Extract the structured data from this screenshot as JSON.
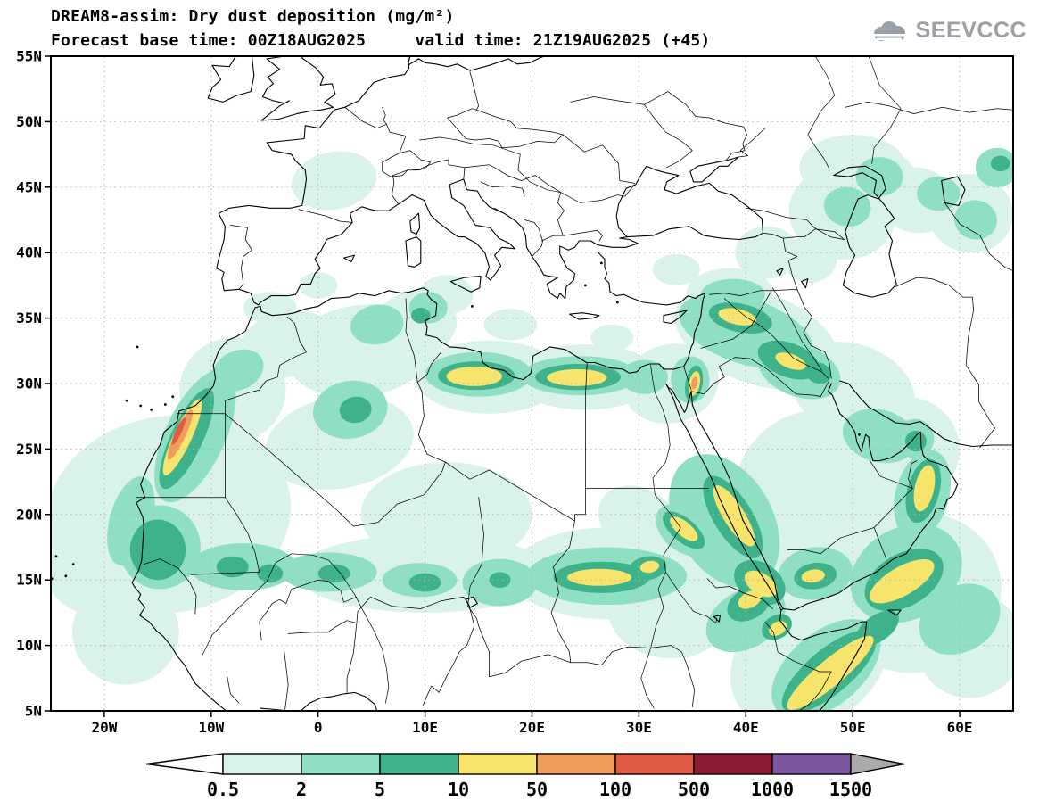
{
  "header": {
    "title_line1": "DREAM8-assim: Dry dust deposition (mg/m²)",
    "title_line2": "Forecast base time: 00Z18AUG2025     valid time: 21Z19AUG2025 (+45)",
    "logo_text": "SEEVCCC"
  },
  "map": {
    "extent": {
      "lon_min": -25,
      "lon_max": 65,
      "lat_min": 5,
      "lat_max": 55
    },
    "lat_ticks": [
      {
        "label": "55N",
        "value": 55
      },
      {
        "label": "50N",
        "value": 50
      },
      {
        "label": "45N",
        "value": 45
      },
      {
        "label": "40N",
        "value": 40
      },
      {
        "label": "35N",
        "value": 35
      },
      {
        "label": "30N",
        "value": 30
      },
      {
        "label": "25N",
        "value": 25
      },
      {
        "label": "20N",
        "value": 20
      },
      {
        "label": "15N",
        "value": 15
      },
      {
        "label": "10N",
        "value": 10
      },
      {
        "label": "5N",
        "value": 5
      }
    ],
    "lon_ticks": [
      {
        "label": "20W",
        "value": -20
      },
      {
        "label": "10W",
        "value": -10
      },
      {
        "label": "0",
        "value": 0
      },
      {
        "label": "10E",
        "value": 10
      },
      {
        "label": "20E",
        "value": 20
      },
      {
        "label": "30E",
        "value": 30
      },
      {
        "label": "40E",
        "value": 40
      },
      {
        "label": "50E",
        "value": 50
      },
      {
        "label": "60E",
        "value": 60
      }
    ]
  },
  "legend": {
    "boundary_labels": [
      "0.5",
      "2",
      "5",
      "10",
      "50",
      "100",
      "500",
      "1000",
      "1500"
    ],
    "colors": [
      "#ffffff",
      "#d9f2ec",
      "#8fe0c2",
      "#3eb28a",
      "#f6e46d",
      "#f09c5d",
      "#e05a44",
      "#8e1c34",
      "#7c58a1",
      "#aaaaaa"
    ]
  },
  "chart_data": {
    "type": "filled_contour_map",
    "title": "DREAM8-assim: Dry dust deposition (mg/m²)",
    "units": "mg/m²",
    "forecast_base_time": "00Z18AUG2025",
    "valid_time": "21Z19AUG2025 (+45)",
    "lead_hours": 45,
    "levels_mg_m2": [
      0.5,
      2,
      5,
      10,
      50,
      100,
      500,
      1000,
      1500
    ],
    "palette": [
      "#ffffff",
      "#d9f2ec",
      "#8fe0c2",
      "#3eb28a",
      "#f6e46d",
      "#f09c5d",
      "#e05a44",
      "#8e1c34",
      "#7c58a1",
      "#aaaaaa"
    ],
    "extent": {
      "lon_min": -25,
      "lon_max": 65,
      "lat_min": 5,
      "lat_max": 55
    },
    "regions_format": "[band_index, lon, lat, rx_deg, ry_deg, rotation_deg_screen_cw]; band i spans levels_mg_m2[i-1]..levels_mg_m2[i] (band 1 = 0.5-2 mg/m2)",
    "regions": [
      [
        1,
        -14,
        20,
        11.5,
        7.5,
        -10
      ],
      [
        1,
        -19,
        15.5,
        6.5,
        3.5,
        0
      ],
      [
        1,
        -18,
        11,
        5,
        4,
        0
      ],
      [
        1,
        -8,
        29.5,
        5,
        4,
        -25
      ],
      [
        1,
        -3,
        33,
        4.5,
        2.5,
        -15
      ],
      [
        1,
        -4.5,
        35.8,
        2.5,
        1.2,
        0
      ],
      [
        1,
        1.5,
        45.5,
        4,
        2.2,
        -10
      ],
      [
        1,
        4,
        32.5,
        7,
        3.5,
        -8
      ],
      [
        1,
        9,
        34.5,
        4,
        2.5,
        -10
      ],
      [
        1,
        12,
        36.8,
        2.5,
        1.5,
        0
      ],
      [
        1,
        0,
        37.5,
        1.8,
        1,
        0
      ],
      [
        1,
        2,
        25.5,
        7,
        3.5,
        -10
      ],
      [
        1,
        12,
        20,
        8,
        4,
        0
      ],
      [
        1,
        10,
        15.5,
        12,
        3,
        0
      ],
      [
        1,
        27,
        15.5,
        9,
        3.5,
        0
      ],
      [
        1,
        16,
        30.5,
        7,
        2.8,
        0
      ],
      [
        1,
        25,
        30.5,
        7,
        2.5,
        0
      ],
      [
        1,
        33,
        30,
        4.5,
        3,
        -15
      ],
      [
        1,
        18,
        34.5,
        2.5,
        1.2,
        0
      ],
      [
        1,
        27.5,
        33.5,
        2,
        1,
        0
      ],
      [
        1,
        38.5,
        18,
        5,
        6.5,
        -30
      ],
      [
        1,
        33,
        13,
        6,
        4,
        0
      ],
      [
        1,
        30,
        19.5,
        4,
        2.5,
        30
      ],
      [
        1,
        46,
        9,
        8,
        5,
        -35
      ],
      [
        1,
        56,
        14,
        8,
        6,
        -25
      ],
      [
        1,
        61,
        10,
        5,
        4,
        -25
      ],
      [
        1,
        47,
        22,
        8,
        6,
        -10
      ],
      [
        1,
        52.5,
        18.5,
        4,
        3,
        -25
      ],
      [
        1,
        41,
        33.5,
        8,
        3.5,
        20
      ],
      [
        1,
        38.5,
        37,
        4,
        1.8,
        0
      ],
      [
        1,
        33.5,
        38.7,
        2.2,
        1.2,
        0
      ],
      [
        1,
        42,
        40,
        3,
        2,
        0
      ],
      [
        1,
        46,
        39.5,
        2.5,
        1.8,
        0
      ],
      [
        1,
        50,
        29.5,
        6,
        3.5,
        20
      ],
      [
        1,
        55,
        25,
        5,
        4,
        15
      ],
      [
        1,
        49,
        43,
        5,
        3.5,
        10
      ],
      [
        1,
        52,
        45.5,
        4,
        2.5,
        0
      ],
      [
        1,
        50,
        46.5,
        5,
        2.5,
        0
      ],
      [
        1,
        56,
        44,
        3.5,
        2.5,
        10
      ],
      [
        1,
        61,
        43,
        4,
        3,
        10
      ],
      [
        2,
        -11.5,
        26,
        2.8,
        5.5,
        25
      ],
      [
        2,
        -14.8,
        17.5,
        3.8,
        3.2,
        0
      ],
      [
        2,
        -17.5,
        19.5,
        2,
        3.5,
        15
      ],
      [
        2,
        -7,
        16,
        5,
        1.8,
        0
      ],
      [
        2,
        1,
        15.6,
        4.5,
        1.5,
        0
      ],
      [
        2,
        9.5,
        15,
        3.5,
        1.3,
        0
      ],
      [
        2,
        17,
        14.8,
        3.5,
        1.8,
        0
      ],
      [
        2,
        -7.5,
        31,
        2.5,
        1.5,
        -25
      ],
      [
        2,
        3,
        28,
        3.5,
        2.2,
        -10
      ],
      [
        2,
        5.5,
        34.5,
        2.5,
        1.5,
        -10
      ],
      [
        2,
        10.3,
        35.8,
        1.8,
        1.2,
        0
      ],
      [
        2,
        15,
        30.7,
        5,
        1.7,
        0
      ],
      [
        2,
        24.5,
        30.6,
        5.5,
        1.5,
        0
      ],
      [
        2,
        30.5,
        30.5,
        2.2,
        1.3,
        0
      ],
      [
        2,
        34.8,
        30.3,
        1.8,
        1.8,
        0
      ],
      [
        2,
        40,
        34,
        6.5,
        2.5,
        18
      ],
      [
        2,
        45,
        31,
        4,
        2,
        20
      ],
      [
        2,
        38.8,
        36.8,
        3,
        1.2,
        0
      ],
      [
        2,
        38,
        19.5,
        4.5,
        5.5,
        -30
      ],
      [
        2,
        27,
        15.3,
        7.5,
        2.2,
        0
      ],
      [
        2,
        34.2,
        18.8,
        3,
        1.6,
        40
      ],
      [
        2,
        40,
        12,
        4,
        2.2,
        -30
      ],
      [
        2,
        47.5,
        8.2,
        6,
        2.8,
        -40
      ],
      [
        2,
        55,
        15.5,
        5.5,
        3.5,
        -30
      ],
      [
        2,
        60,
        12,
        4,
        2.5,
        -30
      ],
      [
        2,
        46.5,
        15.5,
        3.5,
        2,
        -8
      ],
      [
        2,
        56.5,
        21.5,
        2.5,
        3.5,
        15
      ],
      [
        2,
        52.5,
        26,
        3.5,
        2,
        15
      ],
      [
        2,
        55.8,
        25.8,
        1.8,
        1.5,
        0
      ],
      [
        2,
        49.5,
        43.5,
        2.2,
        1.5,
        10
      ],
      [
        2,
        52.5,
        45.8,
        2.2,
        1.5,
        0
      ],
      [
        2,
        58,
        44.5,
        2,
        1.3,
        0
      ],
      [
        2,
        61.5,
        42.5,
        2,
        1.5,
        10
      ],
      [
        2,
        63.5,
        46.5,
        2,
        1.5,
        0
      ],
      [
        3,
        -12.3,
        25.8,
        1.5,
        4.2,
        25
      ],
      [
        3,
        -15,
        17.3,
        2.6,
        2.3,
        0
      ],
      [
        3,
        -8,
        16,
        1.5,
        0.8,
        0
      ],
      [
        3,
        -4.5,
        15.5,
        1.2,
        0.7,
        0
      ],
      [
        3,
        1.5,
        15.5,
        1.5,
        0.7,
        0
      ],
      [
        3,
        10,
        14.8,
        1.5,
        0.7,
        0
      ],
      [
        3,
        17,
        15,
        1,
        0.6,
        0
      ],
      [
        3,
        14.8,
        30.6,
        3.6,
        1.1,
        0
      ],
      [
        3,
        24.3,
        30.5,
        4,
        1,
        0
      ],
      [
        3,
        9.6,
        35.2,
        0.9,
        0.6,
        0
      ],
      [
        3,
        3.5,
        28,
        1.5,
        1,
        -10
      ],
      [
        3,
        39.5,
        35,
        3,
        1.1,
        12
      ],
      [
        3,
        44,
        31.8,
        3,
        1.3,
        20
      ],
      [
        3,
        46.8,
        30.8,
        1.2,
        0.8,
        20
      ],
      [
        3,
        38.8,
        19.8,
        1.8,
        3.6,
        -32
      ],
      [
        3,
        41.3,
        14.8,
        2.6,
        1.5,
        33
      ],
      [
        3,
        26.5,
        15.2,
        4.5,
        1.2,
        0
      ],
      [
        3,
        30.8,
        15.9,
        1.8,
        0.9,
        -10
      ],
      [
        3,
        34.2,
        18.8,
        2.4,
        0.9,
        40
      ],
      [
        3,
        40.3,
        13.2,
        2.2,
        1.2,
        -30
      ],
      [
        3,
        42.9,
        11.4,
        1.5,
        0.9,
        -30
      ],
      [
        3,
        47.8,
        8,
        5.5,
        1.7,
        -40
      ],
      [
        3,
        52.3,
        11.3,
        2.3,
        1,
        -35
      ],
      [
        3,
        54.8,
        15,
        4,
        2,
        -30
      ],
      [
        3,
        56.6,
        21.8,
        1.5,
        2.5,
        15
      ],
      [
        3,
        46.5,
        15.3,
        2,
        1,
        -8
      ],
      [
        3,
        55.9,
        25.6,
        1,
        0.8,
        0
      ],
      [
        3,
        35.15,
        30,
        0.8,
        1.4,
        10
      ],
      [
        3,
        63.8,
        46.8,
        0.9,
        0.6,
        0
      ],
      [
        4,
        -12.7,
        25.9,
        0.85,
        3.2,
        25
      ],
      [
        4,
        14.6,
        30.55,
        2.6,
        0.75,
        0
      ],
      [
        4,
        24.2,
        30.45,
        2.8,
        0.65,
        0
      ],
      [
        4,
        39.2,
        35.1,
        1.8,
        0.6,
        12
      ],
      [
        4,
        44.2,
        31.7,
        1.5,
        0.55,
        20
      ],
      [
        4,
        38.9,
        19.9,
        1,
        2.7,
        -32
      ],
      [
        4,
        41.4,
        14.7,
        1.7,
        0.8,
        33
      ],
      [
        4,
        26.3,
        15.2,
        3,
        0.65,
        0
      ],
      [
        4,
        31,
        16,
        0.9,
        0.45,
        -10
      ],
      [
        4,
        34.2,
        18.9,
        1.6,
        0.55,
        40
      ],
      [
        4,
        40.4,
        13.5,
        1.2,
        0.6,
        -30
      ],
      [
        4,
        43,
        11.3,
        0.9,
        0.5,
        -30
      ],
      [
        4,
        47.9,
        7.9,
        5.2,
        1,
        -40
      ],
      [
        4,
        54.6,
        14.9,
        3.4,
        1.1,
        -30
      ],
      [
        4,
        56.7,
        22,
        0.9,
        1.8,
        12
      ],
      [
        4,
        35.2,
        30,
        0.5,
        0.95,
        10
      ],
      [
        4,
        46.3,
        15.3,
        1.1,
        0.5,
        -8
      ],
      [
        5,
        -12.9,
        26.1,
        0.5,
        2.1,
        25
      ],
      [
        5,
        35.2,
        30.05,
        0.28,
        0.5,
        10
      ],
      [
        6,
        -13.05,
        26.35,
        0.28,
        1.15,
        25
      ]
    ]
  }
}
